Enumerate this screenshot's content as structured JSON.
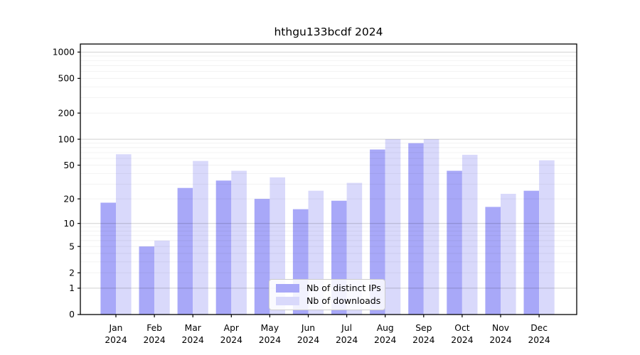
{
  "chart_data": {
    "type": "bar",
    "title": "hthgu133bcdf 2024",
    "categories": [
      "Jan",
      "Feb",
      "Mar",
      "Apr",
      "May",
      "Jun",
      "Jul",
      "Aug",
      "Sep",
      "Oct",
      "Nov",
      "Dec"
    ],
    "category_year": "2024",
    "series": [
      {
        "name": "Nb of distinct IPs",
        "color": "#a8a8f8",
        "values": [
          18,
          5,
          27,
          33,
          20,
          15,
          19,
          76,
          90,
          43,
          16,
          25
        ]
      },
      {
        "name": "Nb of downloads",
        "color": "#d9d9fb",
        "values": [
          67,
          6,
          56,
          43,
          36,
          25,
          31,
          100,
          100,
          66,
          23,
          57
        ]
      }
    ],
    "xlabel": "",
    "ylabel": "",
    "yscale": "log1p",
    "ylim": [
      0,
      1250
    ],
    "yticks": [
      1000,
      500,
      200,
      100,
      50,
      20,
      10,
      5,
      2,
      1,
      0
    ],
    "grid": {
      "on": true,
      "major": [
        1,
        10,
        100,
        1000
      ],
      "minor": [
        2,
        3,
        4,
        5,
        6,
        7,
        8,
        9,
        20,
        30,
        40,
        50,
        60,
        70,
        80,
        90,
        200,
        300,
        400,
        500,
        600,
        700,
        800,
        900
      ]
    },
    "legend_position": "lower center"
  },
  "colors": {
    "frame": "#000000",
    "major_grid": "rgba(0,0,0,0.18)",
    "minor_grid": "rgba(0,0,0,0.06)",
    "text": "#000000",
    "legend_border": "#cccccc"
  }
}
